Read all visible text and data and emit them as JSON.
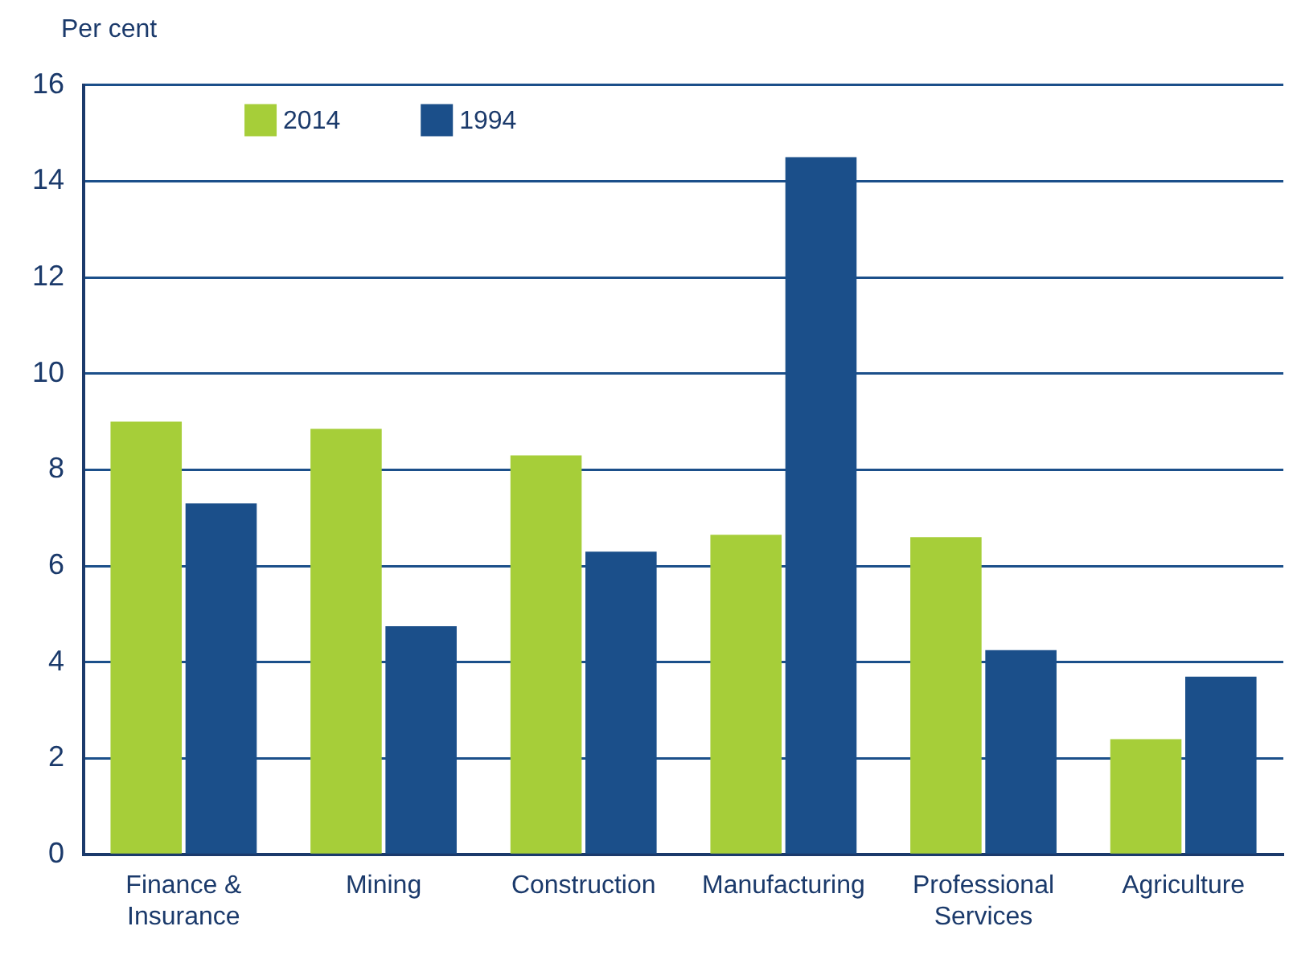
{
  "chart_data": {
    "type": "bar",
    "ylabel": "Per cent",
    "categories": [
      "Finance & Insurance",
      "Mining",
      "Construction",
      "Manufacturing",
      "Professional Services",
      "Agriculture"
    ],
    "series": [
      {
        "name": "2014",
        "color": "#a6ce39",
        "values": [
          9.0,
          8.85,
          8.3,
          6.65,
          6.6,
          2.4
        ]
      },
      {
        "name": "1994",
        "color": "#1b4f8a",
        "values": [
          7.3,
          4.75,
          6.3,
          14.5,
          4.25,
          3.7
        ]
      }
    ],
    "ylim": [
      0,
      16
    ],
    "yticks": [
      0,
      2,
      4,
      6,
      8,
      10,
      12,
      14,
      16
    ],
    "grid": "y",
    "legend": "top left"
  }
}
